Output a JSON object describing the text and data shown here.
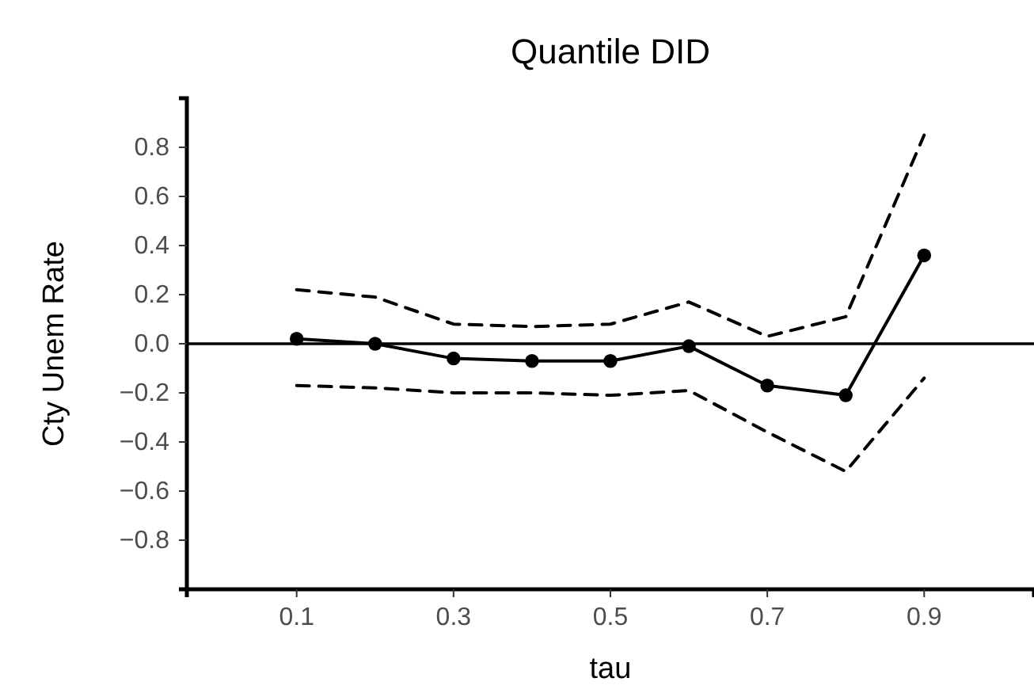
{
  "chart_data": {
    "type": "line",
    "title": "Quantile DID",
    "xlabel": "tau",
    "ylabel": "Cty Unem Rate",
    "x": [
      0.1,
      0.2,
      0.3,
      0.4,
      0.5,
      0.6,
      0.7,
      0.8,
      0.9
    ],
    "series": [
      {
        "color": "#000000",
        "marker": "circle",
        "line_style": "solid",
        "values": [
          0.02,
          0.0,
          -0.06,
          -0.07,
          -0.07,
          -0.01,
          -0.17,
          -0.21,
          0.36
        ]
      },
      {
        "color": "#000000",
        "marker": "none",
        "line_style": "dashed",
        "values": [
          0.22,
          0.19,
          0.08,
          0.07,
          0.08,
          0.17,
          0.03,
          0.11,
          0.85
        ]
      },
      {
        "color": "#000000",
        "marker": "none",
        "line_style": "dashed",
        "values": [
          -0.17,
          -0.18,
          -0.2,
          -0.2,
          -0.21,
          -0.19,
          -0.36,
          -0.52,
          -0.14
        ]
      }
    ],
    "xlim": [
      -0.04,
      1.04
    ],
    "xticks": [
      0.1,
      0.3,
      0.5,
      0.7,
      0.9
    ],
    "ylim": [
      -1,
      1
    ],
    "yticks": [
      -0.8,
      -0.6,
      -0.4,
      -0.2,
      {
        "value": 0,
        "label": "0.0"
      },
      0.2,
      0.4,
      0.6,
      0.8
    ],
    "ref_lines": [
      {
        "axis": "y",
        "value": 0,
        "color": "#000000",
        "line_style": "solid"
      }
    ],
    "grid": false
  }
}
